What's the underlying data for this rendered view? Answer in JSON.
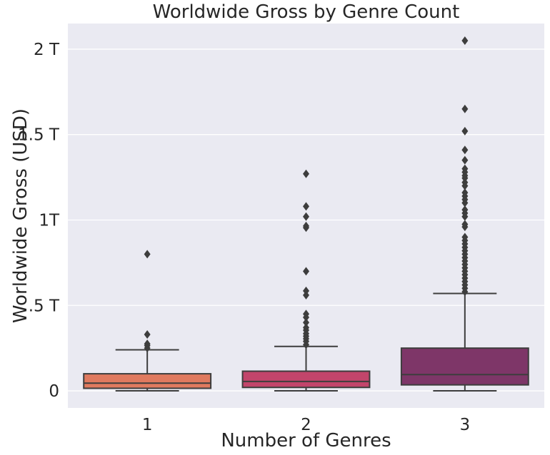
{
  "chart_data": {
    "type": "box",
    "title": "Worldwide Gross by Genre Count",
    "xlabel": "Number of Genres",
    "ylabel": "Worldwide Gross (USD)",
    "ylim": [
      -0.1,
      2.15
    ],
    "y_unit": "T",
    "grid": true,
    "y_ticks": [
      {
        "value": 0,
        "label": "0"
      },
      {
        "value": 0.5,
        "label": ".5 T"
      },
      {
        "value": 1.0,
        "label": "1T"
      },
      {
        "value": 1.5,
        "label": "1.5 T"
      },
      {
        "value": 2.0,
        "label": "2 T"
      }
    ],
    "categories": [
      "1",
      "2",
      "3"
    ],
    "colors": [
      "#e07a5f",
      "#c2456b",
      "#7e3668"
    ],
    "boxes": [
      {
        "category": "1",
        "min": 0.0,
        "q1": 0.015,
        "median": 0.045,
        "q3": 0.1,
        "max": 0.24,
        "outliers": [
          0.25,
          0.265,
          0.275,
          0.33,
          0.8
        ]
      },
      {
        "category": "2",
        "min": 0.0,
        "q1": 0.02,
        "median": 0.055,
        "q3": 0.115,
        "max": 0.26,
        "outliers": [
          0.27,
          0.29,
          0.305,
          0.32,
          0.335,
          0.355,
          0.37,
          0.4,
          0.43,
          0.45,
          0.56,
          0.585,
          0.7,
          0.955,
          0.965,
          1.02,
          1.08,
          1.27
        ]
      },
      {
        "category": "3",
        "min": 0.0,
        "q1": 0.035,
        "median": 0.095,
        "q3": 0.25,
        "max": 0.57,
        "outliers": [
          0.58,
          0.6,
          0.62,
          0.64,
          0.66,
          0.68,
          0.7,
          0.72,
          0.74,
          0.76,
          0.78,
          0.8,
          0.82,
          0.84,
          0.86,
          0.88,
          0.9,
          0.96,
          0.975,
          1.02,
          1.04,
          1.06,
          1.1,
          1.12,
          1.14,
          1.16,
          1.2,
          1.22,
          1.245,
          1.26,
          1.28,
          1.3,
          1.35,
          1.41,
          1.52,
          1.65,
          2.05
        ]
      }
    ]
  }
}
